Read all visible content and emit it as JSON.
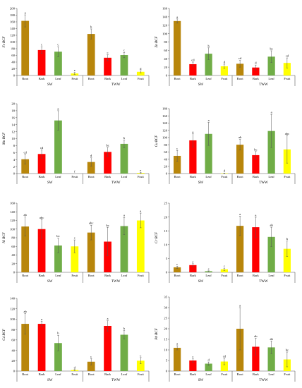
{
  "colors": {
    "Root": "#B8860B",
    "Bark": "#FF0000",
    "Leaf": "#70AD47",
    "Fruit": "#FFFF00"
  },
  "chart_data": [
    {
      "type": "bar",
      "ylabel": "Fe BCF",
      "ylim": [
        0,
        200
      ],
      "yticks": [
        0,
        20,
        40,
        60,
        80,
        100,
        120,
        140,
        160,
        180,
        200
      ],
      "groups": [
        "SW",
        "TWW"
      ],
      "categories": [
        "Root",
        "Bark",
        "Leaf",
        "Fruit"
      ],
      "values": [
        [
          163,
          76,
          71,
          6
        ],
        [
          124,
          53,
          61,
          11
        ]
      ],
      "errors": [
        [
          18,
          10,
          15,
          3
        ],
        [
          15,
          9,
          8,
          3
        ]
      ],
      "letters": [
        [
          "a",
          "c",
          "c",
          "e"
        ],
        [
          "b",
          "c",
          "c",
          "d"
        ]
      ]
    },
    {
      "type": "bar",
      "ylabel": "Zn BCF",
      "ylim": [
        0,
        160
      ],
      "yticks": [
        0,
        20,
        40,
        60,
        80,
        100,
        120,
        140,
        160
      ],
      "groups": [
        "SW",
        "TWW"
      ],
      "categories": [
        "Root",
        "Bark",
        "Leaf",
        "Fruit"
      ],
      "values": [
        [
          130,
          27,
          52,
          22
        ],
        [
          28,
          19,
          45,
          30
        ]
      ],
      "errors": [
        [
          5,
          5,
          14,
          5
        ],
        [
          8,
          6,
          14,
          12
        ]
      ],
      "letters": [
        [
          "a",
          "cd",
          "b",
          "d"
        ],
        [
          "cd",
          "d",
          "bc",
          "cd"
        ]
      ]
    },
    {
      "type": "bar",
      "ylabel": "Mn BCF",
      "ylim": [
        0,
        20
      ],
      "yticks": [
        0,
        2,
        4,
        6,
        8,
        10,
        12,
        14,
        16,
        18,
        20
      ],
      "groups": [
        "SW",
        "TWW"
      ],
      "categories": [
        "Root",
        "Bark",
        "Leaf",
        "Fruit"
      ],
      "values": [
        [
          4.1,
          5.6,
          15.2,
          0
        ],
        [
          3.3,
          6.2,
          8.5,
          0.2
        ]
      ],
      "errors": [
        [
          1.4,
          1.2,
          2.8,
          0
        ],
        [
          1.2,
          1.3,
          1.1,
          0.1
        ]
      ],
      "letters": [
        [
          "cd",
          "cd",
          "a",
          "f"
        ],
        [
          "d",
          "bc",
          "b",
          "e"
        ]
      ]
    },
    {
      "type": "bar",
      "ylabel": "Cu BCF",
      "ylim": [
        0,
        180
      ],
      "yticks": [
        0,
        20,
        40,
        60,
        80,
        100,
        120,
        140,
        160,
        180
      ],
      "groups": [
        "SW",
        "TWW"
      ],
      "categories": [
        "Root",
        "Bark",
        "Leaf",
        "Fruit"
      ],
      "values": [
        [
          49,
          92,
          110,
          1
        ],
        [
          80,
          51,
          118,
          67
        ]
      ],
      "errors": [
        [
          15,
          18,
          32,
          0.5
        ],
        [
          15,
          10,
          46,
          38
        ]
      ],
      "letters": [
        [
          "c",
          "a",
          "a",
          "d"
        ],
        [
          "ab",
          "bc",
          "a",
          "abc"
        ]
      ]
    },
    {
      "type": "bar",
      "ylabel": "Ni BCF",
      "ylim": [
        0,
        160
      ],
      "yticks": [
        0,
        20,
        40,
        60,
        80,
        100,
        120,
        140,
        160
      ],
      "groups": [
        "SW",
        "TWW"
      ],
      "categories": [
        "Root",
        "Bark",
        "Leaf",
        "Fruit"
      ],
      "values": [
        [
          106,
          100,
          62,
          60
        ],
        [
          92,
          71,
          107,
          120
        ]
      ],
      "errors": [
        [
          22,
          22,
          17,
          15
        ],
        [
          17,
          33,
          20,
          17
        ]
      ],
      "letters": [
        [
          "ab",
          "abc",
          "bc",
          "c"
        ],
        [
          "abc",
          "bc",
          "a",
          "a"
        ]
      ]
    },
    {
      "type": "bar",
      "ylabel": "Cr BCF",
      "ylim": [
        0,
        25
      ],
      "yticks": [
        0,
        5,
        10,
        15,
        20,
        25
      ],
      "groups": [
        "SW",
        "TWW"
      ],
      "categories": [
        "Root",
        "Bark",
        "Leaf",
        "Fruit"
      ],
      "values": [
        [
          1.8,
          2.6,
          0.4,
          1.1
        ],
        [
          16.8,
          16.3,
          12.8,
          8.5
        ]
      ],
      "errors": [
        [
          0.4,
          0.5,
          0.15,
          0.4
        ],
        [
          3.5,
          3.6,
          3.5,
          2.8
        ]
      ],
      "letters": [
        [
          "c",
          "c",
          "c",
          "c"
        ],
        [
          "a",
          "a",
          "ab",
          "b"
        ]
      ]
    },
    {
      "type": "bar",
      "ylabel": "Cd BCF",
      "ylim": [
        0,
        140
      ],
      "yticks": [
        0,
        20,
        40,
        60,
        80,
        100,
        120,
        140
      ],
      "groups": [
        "SW",
        "TWW"
      ],
      "categories": [
        "Root",
        "Bark",
        "Leaf",
        "Fruit"
      ],
      "values": [
        [
          91,
          91,
          54,
          2
        ],
        [
          18,
          87,
          70,
          20
        ]
      ],
      "errors": [
        [
          20,
          5,
          15,
          1
        ],
        [
          6,
          10,
          8,
          6
        ]
      ],
      "letters": [
        [
          "ab",
          "a",
          "b",
          "d"
        ],
        [
          "c",
          "a",
          "b",
          "c"
        ]
      ]
    },
    {
      "type": "bar",
      "ylabel": "Pb BCF",
      "ylim": [
        0,
        35
      ],
      "yticks": [
        0,
        5,
        10,
        15,
        20,
        25,
        30,
        35
      ],
      "groups": [
        "SW",
        "TWW"
      ],
      "categories": [
        "Root",
        "Bark",
        "Leaf",
        "Fruit"
      ],
      "values": [
        [
          11,
          5,
          3.5,
          4.5
        ],
        [
          20,
          11.5,
          11.2,
          5.5
        ]
      ],
      "errors": [
        [
          1,
          0.8,
          0.8,
          1.5
        ],
        [
          10,
          4,
          3,
          3.5
        ]
      ],
      "letters": [
        [
          "a",
          "c",
          "d",
          "cd"
        ],
        [
          "a",
          "ab",
          "ab",
          "bc"
        ]
      ]
    }
  ]
}
